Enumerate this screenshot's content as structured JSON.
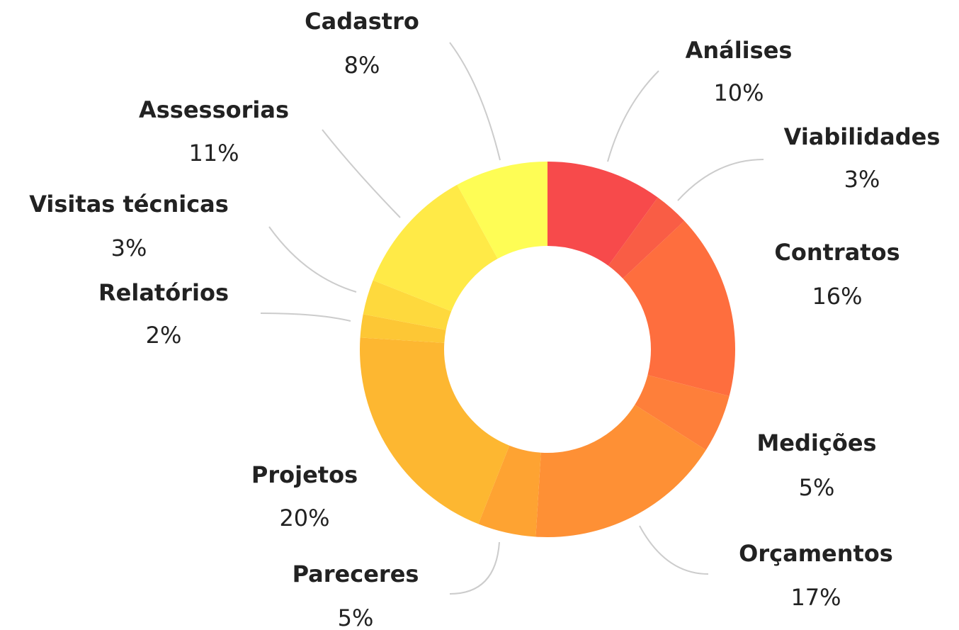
{
  "chart_data": {
    "type": "donut",
    "categories": [
      "Análises",
      "Viabilidades",
      "Contratos",
      "Medições",
      "Orçamentos",
      "Pareceres",
      "Projetos",
      "Relatórios",
      "Visitas técnicas",
      "Assessorias",
      "Cadastro"
    ],
    "values": [
      10,
      3,
      16,
      5,
      17,
      5,
      20,
      2,
      3,
      11,
      8
    ],
    "value_labels": [
      "10%",
      "3%",
      "16%",
      "5%",
      "17%",
      "5%",
      "20%",
      "2%",
      "3%",
      "11%",
      "8%"
    ],
    "colors": [
      "#f74a4b",
      "#f95d45",
      "#fe6e3e",
      "#fe7f3a",
      "#fe9035",
      "#fea332",
      "#fdb731",
      "#fdc735",
      "#fed93d",
      "#ffea47",
      "#fefd55"
    ]
  }
}
